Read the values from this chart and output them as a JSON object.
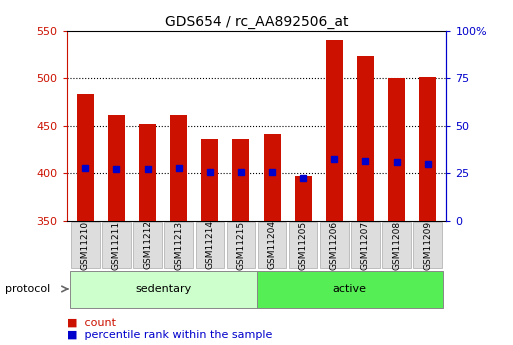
{
  "title": "GDS654 / rc_AA892506_at",
  "samples": [
    "GSM11210",
    "GSM11211",
    "GSM11212",
    "GSM11213",
    "GSM11214",
    "GSM11215",
    "GSM11204",
    "GSM11205",
    "GSM11206",
    "GSM11207",
    "GSM11208",
    "GSM11209"
  ],
  "groups": [
    "sedentary",
    "sedentary",
    "sedentary",
    "sedentary",
    "sedentary",
    "sedentary",
    "active",
    "active",
    "active",
    "active",
    "active",
    "active"
  ],
  "bar_heights": [
    484,
    461,
    452,
    462,
    436,
    436,
    441,
    397,
    541,
    524,
    500,
    502
  ],
  "percentile_values": [
    406,
    405,
    405,
    406,
    401,
    401,
    401,
    395,
    415,
    413,
    412,
    410
  ],
  "bar_color": "#cc1100",
  "percentile_color": "#0000cc",
  "ymin": 350,
  "ymax": 550,
  "y2min": 0,
  "y2max": 100,
  "yticks": [
    350,
    400,
    450,
    500,
    550
  ],
  "y2ticks": [
    0,
    25,
    50,
    75,
    100
  ],
  "y2ticklabels": [
    "0",
    "25",
    "50",
    "75",
    "100%"
  ],
  "grid_values": [
    400,
    450,
    500
  ],
  "sedentary_color": "#ccffcc",
  "active_color": "#55ee55",
  "sedentary_label": "sedentary",
  "active_label": "active",
  "protocol_label": "protocol",
  "legend_count_label": "count",
  "legend_percentile_label": "percentile rank within the sample",
  "bar_width": 0.55,
  "bg_color": "#ffffff",
  "sample_box_color": "#dddddd",
  "sample_box_edge": "#aaaaaa"
}
